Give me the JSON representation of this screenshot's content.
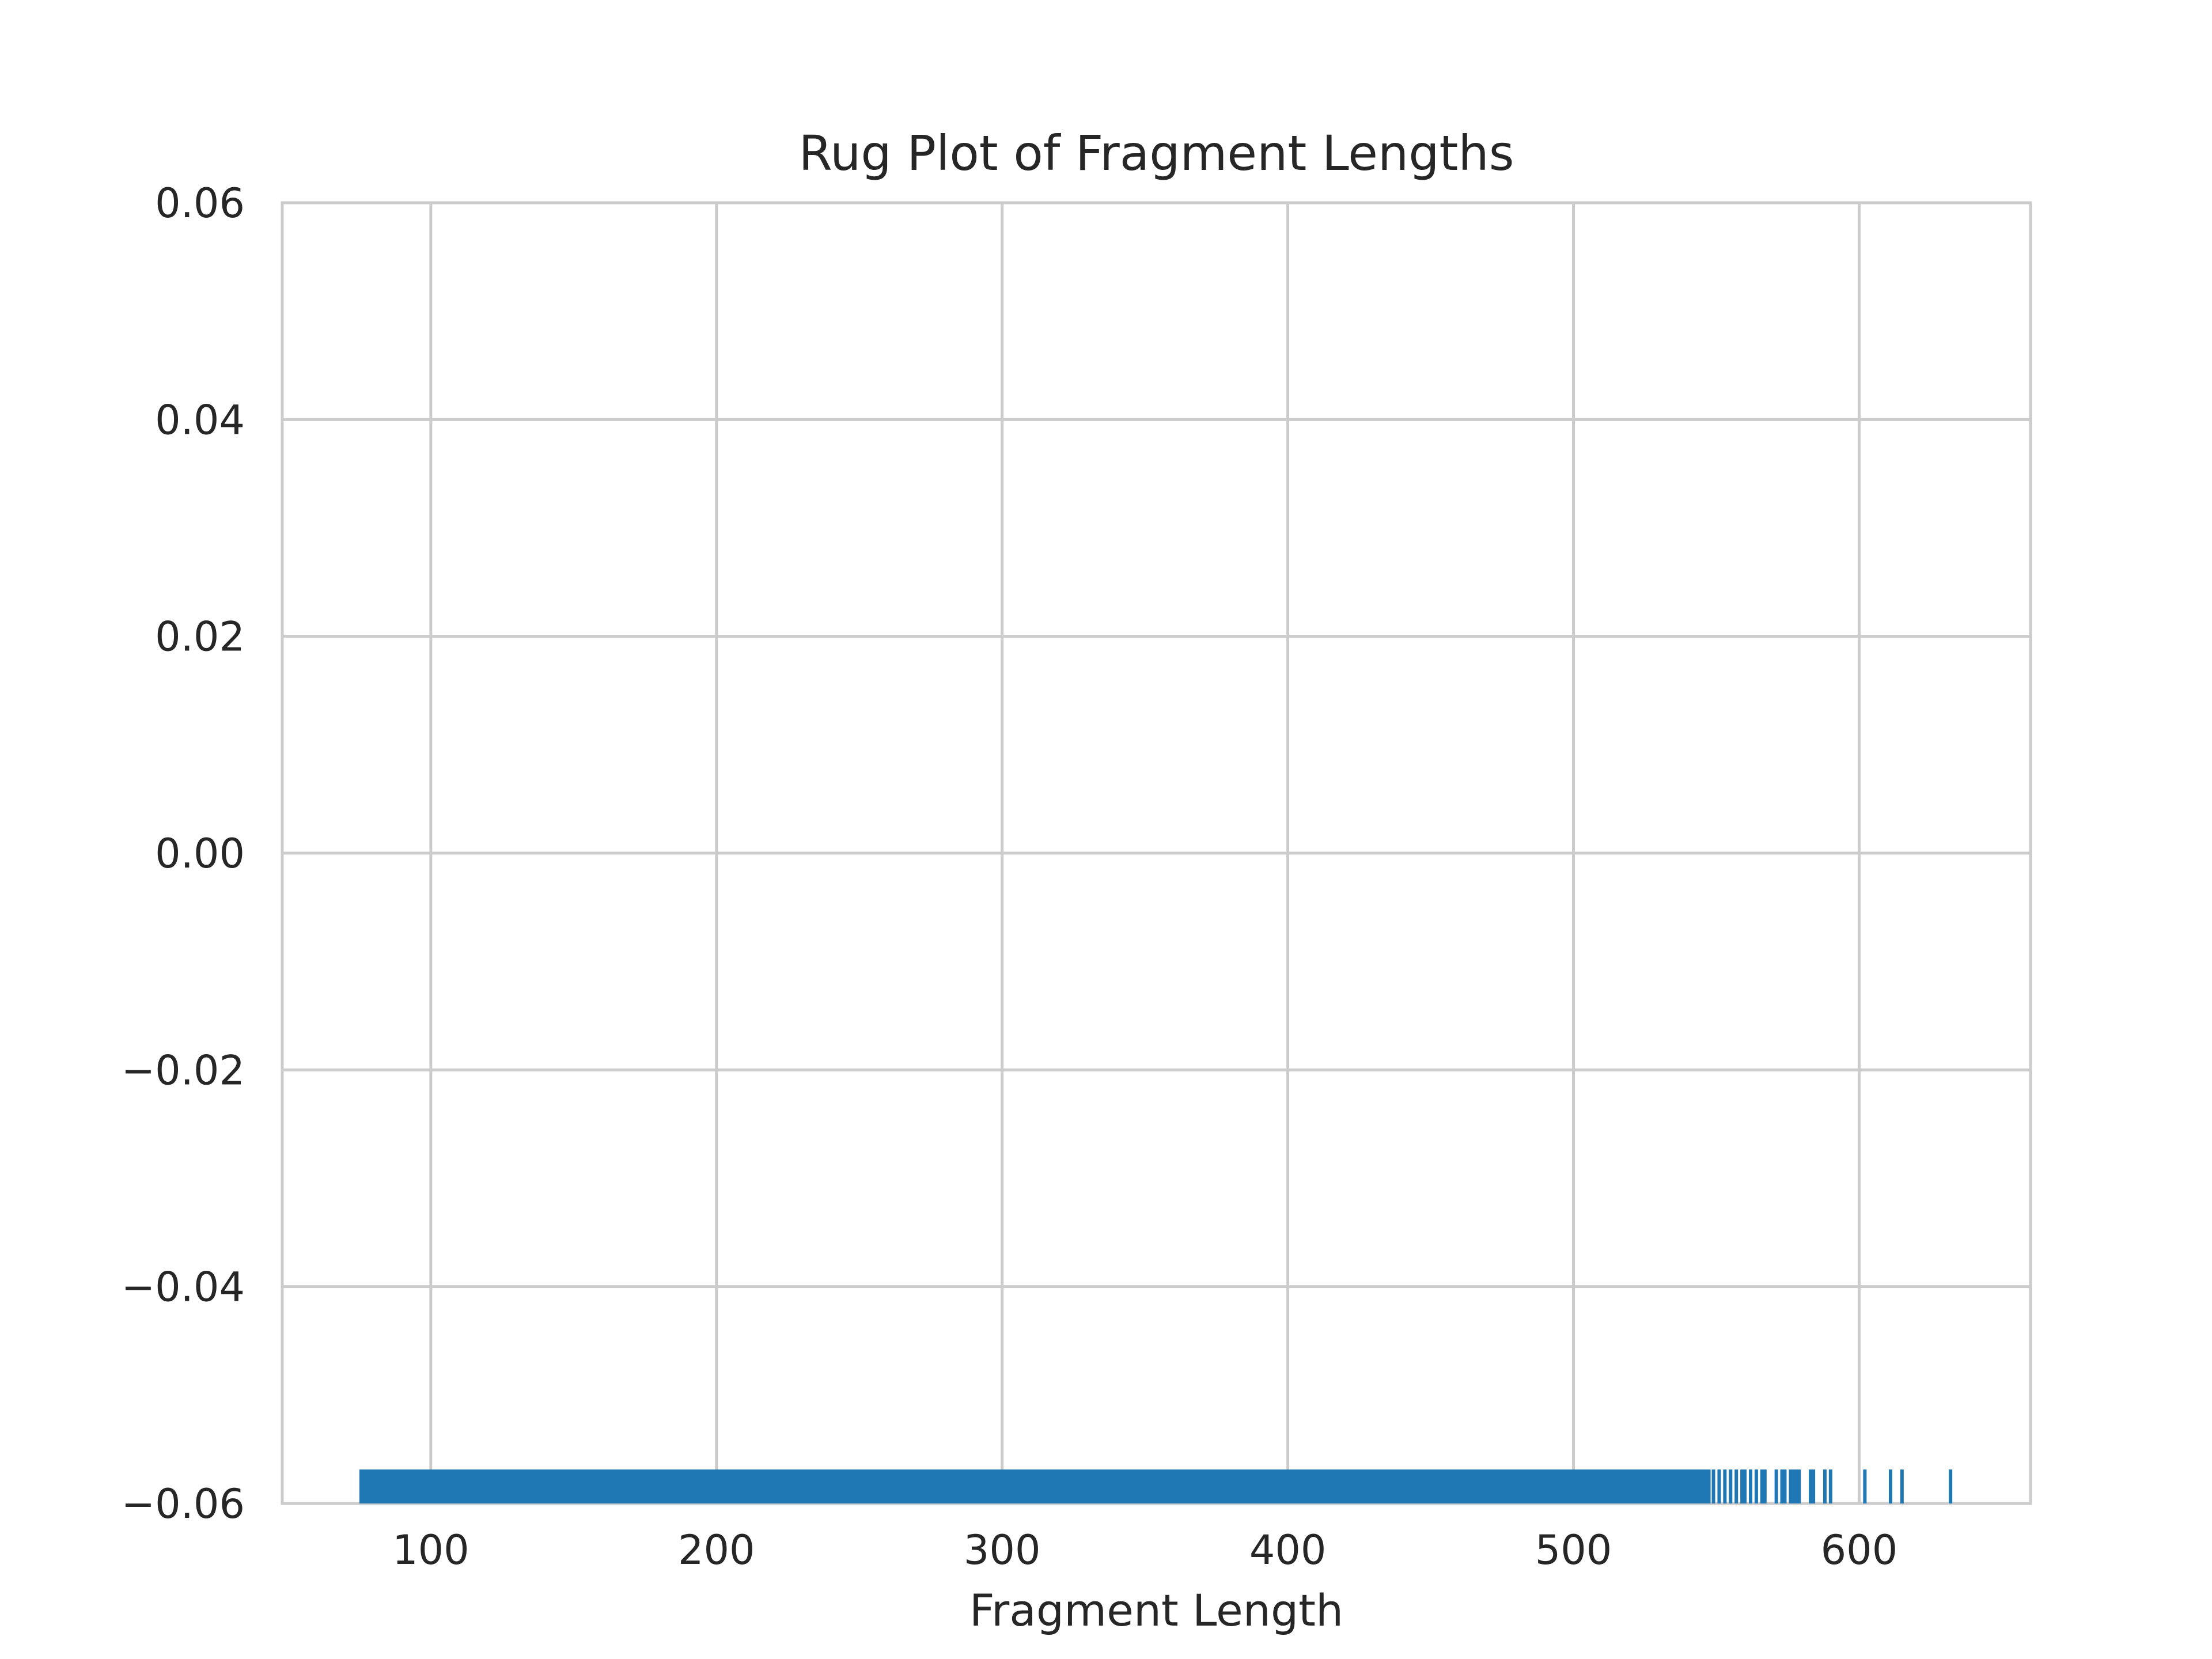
{
  "chart_data": {
    "type": "scatter",
    "title": "Rug Plot of Fragment Lengths",
    "xlabel": "Fragment Length",
    "ylabel": "",
    "xlim": [
      48,
      660
    ],
    "ylim": [
      -0.06,
      0.06
    ],
    "x_ticks": [
      100,
      200,
      300,
      400,
      500,
      600
    ],
    "x_tick_labels": [
      "100",
      "200",
      "300",
      "400",
      "500",
      "600"
    ],
    "y_ticks": [
      0.06,
      0.04,
      0.02,
      0.0,
      -0.02,
      -0.04,
      -0.06
    ],
    "y_tick_labels": [
      "0.06",
      "0.04",
      "0.02",
      "0.00",
      "−0.02",
      "−0.04",
      "−0.06"
    ],
    "grid": true,
    "rug_color": "#1f77b4",
    "rug": {
      "dense_range": [
        75,
        548
      ],
      "values": [
        549,
        551,
        553,
        555,
        557,
        559,
        560,
        562,
        564,
        566,
        567,
        571,
        573,
        574,
        576,
        577,
        578,
        579,
        583,
        584,
        588,
        590,
        602,
        611,
        615,
        632
      ]
    }
  }
}
